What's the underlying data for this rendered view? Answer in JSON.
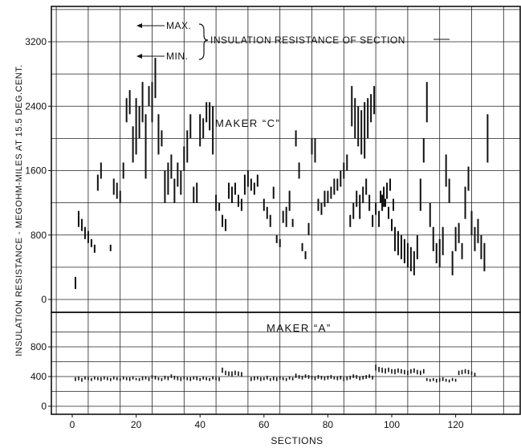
{
  "chart_data": [
    {
      "type": "range",
      "panel": "Maker C",
      "title": "MAKER “C”",
      "ylabel": "INSULATION RESISTANCE - MEGOHM-MILES AT 15.5 DEG.CENT.",
      "xlabel": "SECTIONS",
      "xlim": [
        0,
        136
      ],
      "ylim": [
        0,
        3600
      ],
      "yticks": [
        "0",
        "800",
        "1600",
        "2400",
        "3200"
      ],
      "grid": true,
      "annotations": {
        "max": "MAX.",
        "min": "MIN.",
        "text": "INSULATION RESISTANCE OF SECTION"
      },
      "ranges": [
        [
          1,
          130,
          280
        ],
        [
          2,
          900,
          1100
        ],
        [
          3,
          850,
          1000
        ],
        [
          4,
          750,
          900
        ],
        [
          5,
          700,
          850
        ],
        [
          6,
          650,
          750
        ],
        [
          7,
          580,
          680
        ],
        [
          8,
          1350,
          1550
        ],
        [
          9,
          1500,
          1700
        ],
        [
          12,
          600,
          680
        ],
        [
          13,
          1300,
          1500
        ],
        [
          14,
          1250,
          1450
        ],
        [
          15,
          1200,
          1350
        ],
        [
          16,
          1500,
          1700
        ],
        [
          17,
          2200,
          2500
        ],
        [
          18,
          2300,
          2600
        ],
        [
          19,
          1700,
          2150
        ],
        [
          20,
          1800,
          2500
        ],
        [
          21,
          2000,
          2400
        ],
        [
          22,
          2200,
          2700
        ],
        [
          23,
          1500,
          2300
        ],
        [
          24,
          2400,
          2650
        ],
        [
          25,
          2200,
          2700
        ],
        [
          26,
          2500,
          3000
        ],
        [
          27,
          1800,
          2300
        ],
        [
          28,
          1900,
          2100
        ],
        [
          29,
          1200,
          1600
        ],
        [
          30,
          1300,
          1700
        ],
        [
          31,
          1500,
          1800
        ],
        [
          32,
          1200,
          1500
        ],
        [
          33,
          1400,
          1700
        ],
        [
          34,
          1300,
          1600
        ],
        [
          35,
          1600,
          1900
        ],
        [
          36,
          1700,
          2100
        ],
        [
          37,
          2000,
          2300
        ],
        [
          38,
          1200,
          1400
        ],
        [
          39,
          1200,
          1450
        ],
        [
          40,
          1900,
          2300
        ],
        [
          41,
          2000,
          2250
        ],
        [
          42,
          2200,
          2450
        ],
        [
          43,
          2100,
          2450
        ],
        [
          44,
          1800,
          2400
        ],
        [
          45,
          1100,
          1300
        ],
        [
          46,
          1100,
          1200
        ],
        [
          47,
          900,
          1050
        ],
        [
          48,
          850,
          1000
        ],
        [
          49,
          1250,
          1450
        ],
        [
          50,
          1200,
          1400
        ],
        [
          51,
          1300,
          1450
        ],
        [
          52,
          1150,
          1300
        ],
        [
          53,
          1100,
          1250
        ],
        [
          54,
          1300,
          1550
        ],
        [
          55,
          1400,
          1600
        ],
        [
          56,
          1350,
          1500
        ],
        [
          57,
          1300,
          1450
        ],
        [
          58,
          1400,
          1550
        ],
        [
          60,
          1100,
          1250
        ],
        [
          61,
          1000,
          1150
        ],
        [
          62,
          900,
          1050
        ],
        [
          63,
          1250,
          1400
        ],
        [
          64,
          700,
          800
        ],
        [
          65,
          650,
          750
        ],
        [
          66,
          950,
          1100
        ],
        [
          67,
          900,
          1150
        ],
        [
          68,
          1100,
          1350
        ],
        [
          69,
          900,
          1000
        ],
        [
          70,
          1900,
          2100
        ],
        [
          71,
          1500,
          1700
        ],
        [
          72,
          600,
          700
        ],
        [
          73,
          500,
          600
        ],
        [
          74,
          800,
          950
        ],
        [
          75,
          1800,
          2000
        ],
        [
          76,
          1700,
          2000
        ],
        [
          77,
          1100,
          1250
        ],
        [
          78,
          1050,
          1200
        ],
        [
          79,
          1150,
          1350
        ],
        [
          80,
          1200,
          1350
        ],
        [
          81,
          1250,
          1400
        ],
        [
          82,
          1300,
          1500
        ],
        [
          83,
          1350,
          1500
        ],
        [
          84,
          1400,
          1600
        ],
        [
          85,
          1500,
          1700
        ],
        [
          86,
          1600,
          1800
        ],
        [
          87,
          900,
          1050
        ],
        [
          88,
          1000,
          1200
        ],
        [
          89,
          1150,
          1350
        ],
        [
          90,
          1000,
          1300
        ],
        [
          91,
          1200,
          1400
        ],
        [
          92,
          1300,
          1500
        ],
        [
          93,
          1100,
          1300
        ],
        [
          94,
          900,
          1050
        ],
        [
          95,
          1050,
          1200
        ],
        [
          96,
          900,
          1100
        ],
        [
          97,
          1100,
          1300
        ],
        [
          98,
          1150,
          1250
        ],
        [
          99,
          1000,
          1150
        ],
        [
          100,
          850,
          1000
        ],
        [
          87.5,
          2150,
          2650
        ],
        [
          88.5,
          2000,
          2500
        ],
        [
          89.5,
          1900,
          2400
        ],
        [
          90.5,
          1800,
          2350
        ],
        [
          91.5,
          1750,
          2450
        ],
        [
          92.5,
          2000,
          2500
        ],
        [
          93.5,
          2200,
          2550
        ],
        [
          94.5,
          2300,
          2650
        ],
        [
          96.5,
          1200,
          1350
        ],
        [
          97.5,
          1150,
          1400
        ],
        [
          98.5,
          1250,
          1450
        ],
        [
          99.5,
          1350,
          1500
        ],
        [
          100.5,
          1100,
          1250
        ],
        [
          101,
          600,
          900
        ],
        [
          102,
          550,
          850
        ],
        [
          103,
          500,
          800
        ],
        [
          104,
          450,
          750
        ],
        [
          105,
          400,
          700
        ],
        [
          106,
          350,
          650
        ],
        [
          107,
          300,
          600
        ],
        [
          108,
          500,
          800
        ],
        [
          109,
          1100,
          1500
        ],
        [
          110,
          1700,
          2000
        ],
        [
          111,
          2200,
          2700
        ],
        [
          112,
          900,
          1200
        ],
        [
          113,
          600,
          900
        ],
        [
          114,
          450,
          700
        ],
        [
          115,
          400,
          750
        ],
        [
          116,
          550,
          900
        ],
        [
          117,
          1400,
          1800
        ],
        [
          118,
          1200,
          1500
        ],
        [
          119,
          300,
          600
        ],
        [
          120,
          600,
          900
        ],
        [
          121,
          700,
          950
        ],
        [
          122,
          500,
          700
        ],
        [
          123,
          1000,
          1400
        ],
        [
          124,
          1350,
          1650
        ],
        [
          125,
          800,
          1100
        ],
        [
          126,
          600,
          900
        ],
        [
          127,
          700,
          1000
        ],
        [
          128,
          500,
          800
        ],
        [
          129,
          350,
          700
        ],
        [
          130,
          1700,
          2300
        ]
      ]
    },
    {
      "type": "range",
      "panel": "Maker A",
      "title": "MAKER “A”",
      "ylabel": "INSULATION RESISTANCE - MEGOHM-MILES AT 15.5 DEG.CENT.",
      "xlabel": "SECTIONS",
      "xlim": [
        0,
        136
      ],
      "ylim": [
        0,
        1100
      ],
      "yticks": [
        "0",
        "400",
        "800"
      ],
      "xticks": [
        "0",
        "20",
        "40",
        "60",
        "80",
        "100",
        "120"
      ],
      "grid": true,
      "ranges": [
        [
          1,
          340,
          390
        ],
        [
          2,
          350,
          400
        ],
        [
          3,
          330,
          380
        ],
        [
          4,
          360,
          400
        ],
        [
          5,
          350,
          390
        ],
        [
          6,
          340,
          380
        ],
        [
          7,
          360,
          400
        ],
        [
          8,
          350,
          390
        ],
        [
          9,
          340,
          390
        ],
        [
          10,
          360,
          400
        ],
        [
          11,
          350,
          390
        ],
        [
          12,
          340,
          380
        ],
        [
          13,
          360,
          400
        ],
        [
          14,
          350,
          390
        ],
        [
          15,
          340,
          380
        ],
        [
          16,
          360,
          400
        ],
        [
          17,
          350,
          390
        ],
        [
          18,
          340,
          390
        ],
        [
          19,
          360,
          400
        ],
        [
          20,
          350,
          380
        ],
        [
          21,
          340,
          380
        ],
        [
          22,
          350,
          400
        ],
        [
          23,
          360,
          400
        ],
        [
          24,
          340,
          390
        ],
        [
          25,
          370,
          420
        ],
        [
          26,
          360,
          410
        ],
        [
          27,
          350,
          390
        ],
        [
          28,
          340,
          380
        ],
        [
          29,
          360,
          410
        ],
        [
          30,
          350,
          400
        ],
        [
          31,
          380,
          430
        ],
        [
          32,
          360,
          410
        ],
        [
          33,
          350,
          400
        ],
        [
          34,
          340,
          390
        ],
        [
          35,
          360,
          400
        ],
        [
          36,
          350,
          390
        ],
        [
          37,
          340,
          390
        ],
        [
          38,
          360,
          400
        ],
        [
          39,
          350,
          400
        ],
        [
          40,
          340,
          380
        ],
        [
          41,
          360,
          400
        ],
        [
          42,
          350,
          390
        ],
        [
          43,
          340,
          380
        ],
        [
          44,
          360,
          400
        ],
        [
          45,
          350,
          390
        ],
        [
          46,
          340,
          390
        ],
        [
          47,
          450,
          520
        ],
        [
          48,
          420,
          480
        ],
        [
          49,
          410,
          470
        ],
        [
          50,
          400,
          470
        ],
        [
          51,
          420,
          480
        ],
        [
          52,
          410,
          470
        ],
        [
          53,
          400,
          460
        ],
        [
          56,
          340,
          390
        ],
        [
          57,
          350,
          400
        ],
        [
          58,
          360,
          400
        ],
        [
          59,
          340,
          390
        ],
        [
          60,
          350,
          390
        ],
        [
          61,
          360,
          410
        ],
        [
          62,
          340,
          380
        ],
        [
          63,
          350,
          400
        ],
        [
          64,
          340,
          390
        ],
        [
          65,
          360,
          400
        ],
        [
          66,
          350,
          390
        ],
        [
          67,
          340,
          380
        ],
        [
          68,
          360,
          400
        ],
        [
          69,
          350,
          390
        ],
        [
          70,
          380,
          440
        ],
        [
          71,
          370,
          420
        ],
        [
          72,
          360,
          410
        ],
        [
          73,
          380,
          430
        ],
        [
          74,
          370,
          420
        ],
        [
          75,
          360,
          410
        ],
        [
          76,
          350,
          400
        ],
        [
          77,
          370,
          420
        ],
        [
          78,
          360,
          410
        ],
        [
          79,
          350,
          400
        ],
        [
          80,
          360,
          410
        ],
        [
          81,
          370,
          420
        ],
        [
          82,
          360,
          400
        ],
        [
          83,
          350,
          400
        ],
        [
          84,
          360,
          410
        ],
        [
          85,
          340,
          390
        ],
        [
          86,
          350,
          400
        ],
        [
          87,
          360,
          410
        ],
        [
          88,
          380,
          430
        ],
        [
          89,
          370,
          420
        ],
        [
          90,
          350,
          400
        ],
        [
          91,
          360,
          410
        ],
        [
          92,
          370,
          420
        ],
        [
          93,
          380,
          430
        ],
        [
          94,
          360,
          410
        ],
        [
          95,
          480,
          560
        ],
        [
          96,
          460,
          530
        ],
        [
          97,
          450,
          520
        ],
        [
          98,
          440,
          510
        ],
        [
          99,
          460,
          520
        ],
        [
          100,
          440,
          500
        ],
        [
          101,
          430,
          500
        ],
        [
          102,
          450,
          510
        ],
        [
          103,
          440,
          500
        ],
        [
          104,
          430,
          490
        ],
        [
          105,
          420,
          480
        ],
        [
          106,
          440,
          500
        ],
        [
          107,
          450,
          510
        ],
        [
          108,
          430,
          490
        ],
        [
          109,
          420,
          480
        ],
        [
          110,
          440,
          500
        ],
        [
          111,
          340,
          380
        ],
        [
          112,
          330,
          370
        ],
        [
          113,
          340,
          380
        ],
        [
          114,
          320,
          370
        ],
        [
          115,
          330,
          380
        ],
        [
          116,
          340,
          390
        ],
        [
          117,
          330,
          370
        ],
        [
          118,
          320,
          360
        ],
        [
          119,
          340,
          380
        ],
        [
          120,
          330,
          370
        ],
        [
          121,
          420,
          480
        ],
        [
          122,
          430,
          490
        ],
        [
          123,
          440,
          500
        ],
        [
          124,
          430,
          490
        ],
        [
          125,
          420,
          470
        ],
        [
          126,
          400,
          450
        ]
      ]
    }
  ]
}
